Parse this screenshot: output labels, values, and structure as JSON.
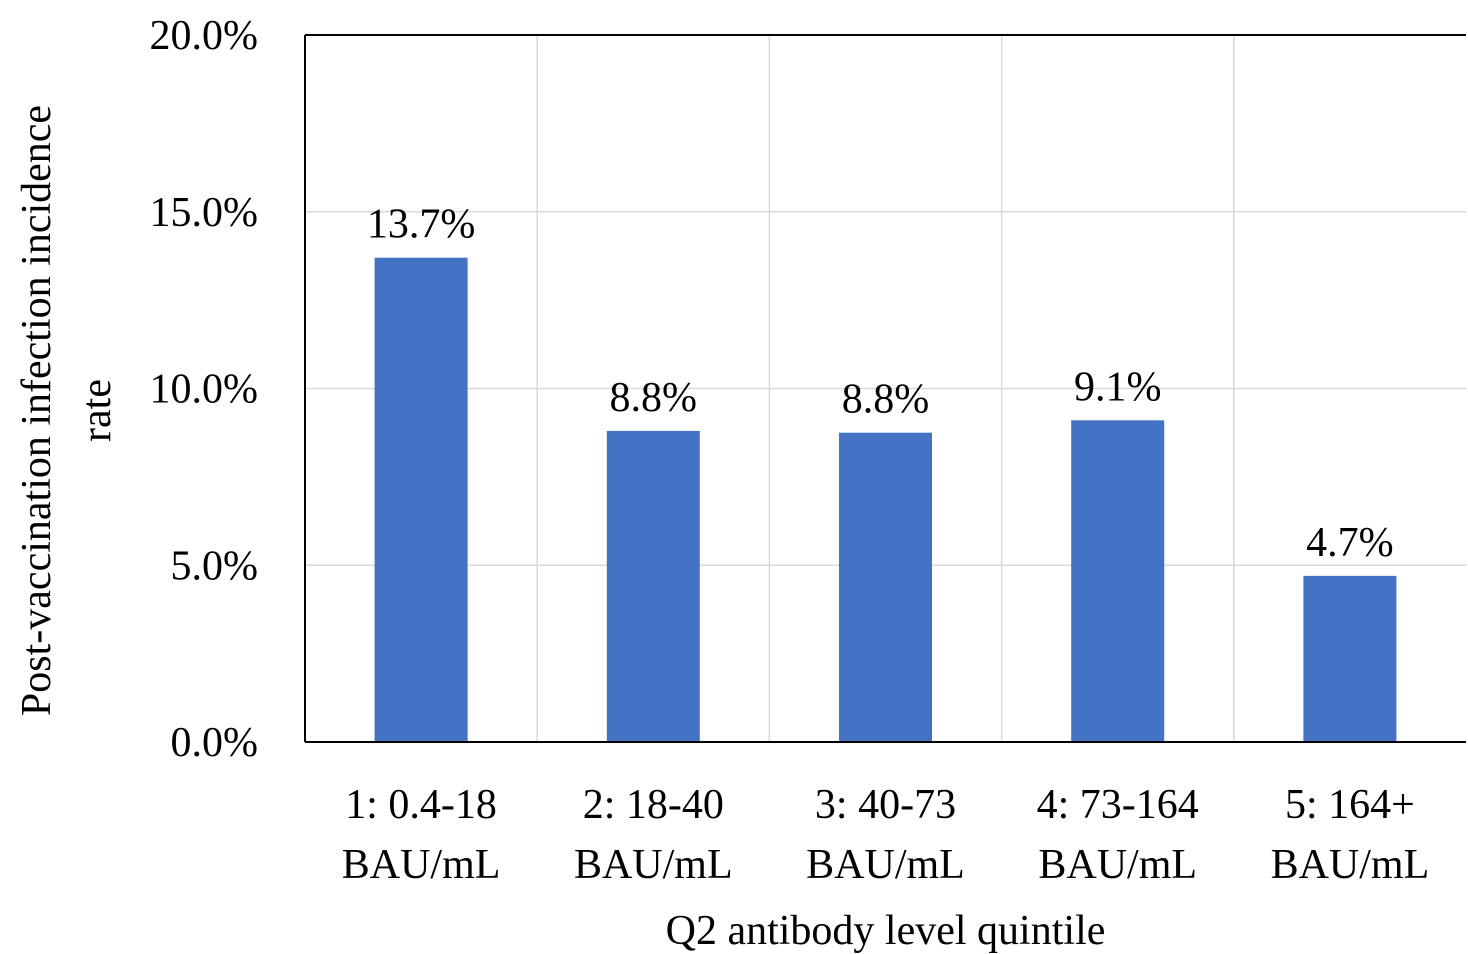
{
  "chart_data": {
    "type": "bar",
    "title": "",
    "xlabel": "Q2 antibody level quintile",
    "ylabel_lines": [
      "Post-vaccination infection incidence",
      "rate"
    ],
    "categories": [
      [
        "1: 0.4-18",
        "BAU/mL"
      ],
      [
        "2: 18-40",
        "BAU/mL"
      ],
      [
        "3: 40-73",
        "BAU/mL"
      ],
      [
        "4: 73-164",
        "BAU/mL"
      ],
      [
        "5: 164+",
        "BAU/mL"
      ]
    ],
    "values": [
      13.7,
      8.8,
      8.75,
      9.1,
      4.7
    ],
    "data_labels": [
      "13.7%",
      "8.8%",
      "8.8%",
      "9.1%",
      "4.7%"
    ],
    "ylim": [
      0,
      20
    ],
    "yticks": [
      0,
      5,
      10,
      15,
      20
    ],
    "ytick_labels": [
      "0.0%",
      "5.0%",
      "10.0%",
      "15.0%",
      "20.0%"
    ],
    "bar_color": "#4472C4",
    "grid": true,
    "legend": "none"
  }
}
